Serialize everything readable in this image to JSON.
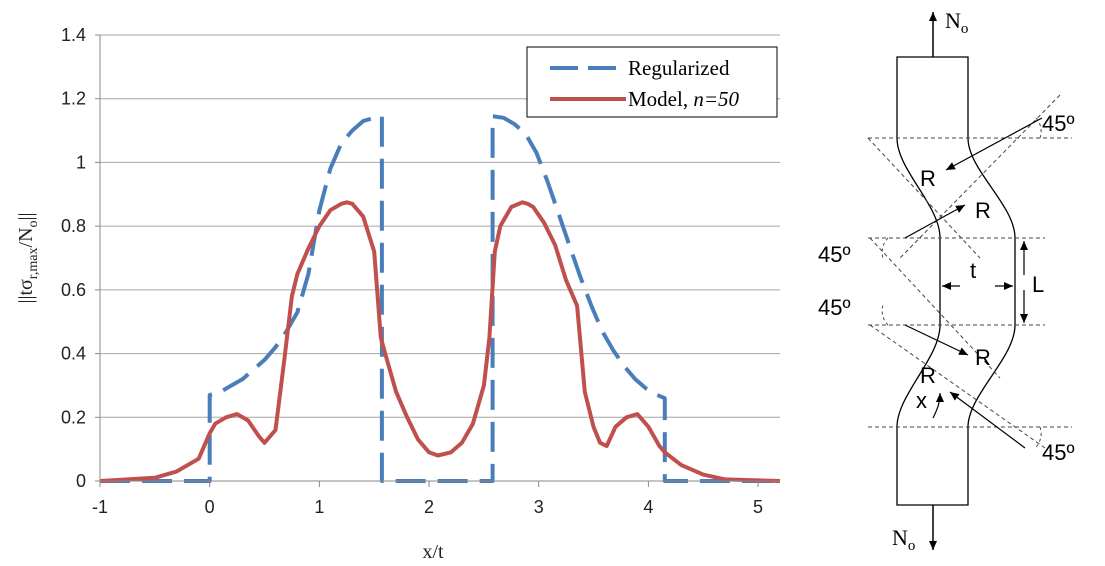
{
  "chart_data": {
    "type": "line",
    "title": "",
    "xlabel": "x/t",
    "ylabel": "||tσr,max/No||",
    "ylabel_parts": {
      "pre": "||tσ",
      "sub": "r,max",
      "mid": "/N",
      "sub2": "o",
      "post": "||"
    },
    "xlim": [
      -1,
      5.2
    ],
    "ylim": [
      0,
      1.4
    ],
    "xticks": [
      "-1",
      "0",
      "1",
      "2",
      "3",
      "4",
      "5"
    ],
    "yticks": [
      "0",
      "0.2",
      "0.4",
      "0.6",
      "0.8",
      "1",
      "1.2",
      "1.4"
    ],
    "grid": "horizontal",
    "legend_position": "top-right",
    "series": [
      {
        "name": "Regularized",
        "name_display": {
          "text": "Regularized"
        },
        "color": "#4a7ebb",
        "style": "dashed",
        "x": [
          -1,
          0,
          0,
          0.1,
          0.2,
          0.3,
          0.4,
          0.5,
          0.6,
          0.7,
          0.8,
          0.9,
          1.0,
          1.1,
          1.2,
          1.3,
          1.4,
          1.5,
          1.57,
          1.57,
          2.58,
          2.58,
          2.68,
          2.78,
          2.88,
          2.98,
          3.08,
          3.18,
          3.28,
          3.38,
          3.48,
          3.58,
          3.68,
          3.78,
          3.88,
          3.98,
          4.08,
          4.15,
          4.15,
          5.2
        ],
        "y": [
          0,
          0,
          0.27,
          0.28,
          0.3,
          0.32,
          0.35,
          0.38,
          0.42,
          0.47,
          0.53,
          0.65,
          0.85,
          0.98,
          1.06,
          1.1,
          1.13,
          1.14,
          1.145,
          0,
          0,
          1.145,
          1.14,
          1.12,
          1.09,
          1.03,
          0.94,
          0.84,
          0.74,
          0.64,
          0.55,
          0.47,
          0.41,
          0.36,
          0.32,
          0.29,
          0.27,
          0.26,
          0,
          0
        ]
      },
      {
        "name": "Model, n=50",
        "name_display": {
          "text": "Model, ",
          "italic": "n=50"
        },
        "color": "#c0504d",
        "style": "solid",
        "x": [
          -1,
          -0.5,
          -0.3,
          -0.1,
          0.0,
          0.05,
          0.15,
          0.25,
          0.35,
          0.45,
          0.5,
          0.6,
          0.68,
          0.75,
          0.8,
          0.9,
          1.0,
          1.1,
          1.2,
          1.25,
          1.3,
          1.4,
          1.5,
          1.56,
          1.6,
          1.7,
          1.8,
          1.9,
          2.0,
          2.08,
          2.2,
          2.3,
          2.4,
          2.5,
          2.55,
          2.6,
          2.65,
          2.75,
          2.85,
          2.9,
          2.95,
          3.05,
          3.15,
          3.25,
          3.35,
          3.42,
          3.5,
          3.56,
          3.62,
          3.7,
          3.8,
          3.9,
          4.0,
          4.1,
          4.15,
          4.3,
          4.5,
          4.7,
          5.2
        ],
        "y": [
          0,
          0.01,
          0.03,
          0.07,
          0.15,
          0.18,
          0.2,
          0.21,
          0.19,
          0.14,
          0.12,
          0.16,
          0.38,
          0.58,
          0.65,
          0.73,
          0.8,
          0.85,
          0.87,
          0.875,
          0.87,
          0.83,
          0.72,
          0.45,
          0.4,
          0.28,
          0.2,
          0.13,
          0.09,
          0.08,
          0.09,
          0.12,
          0.18,
          0.3,
          0.45,
          0.72,
          0.8,
          0.86,
          0.875,
          0.87,
          0.86,
          0.81,
          0.74,
          0.63,
          0.55,
          0.28,
          0.17,
          0.12,
          0.11,
          0.17,
          0.2,
          0.21,
          0.17,
          0.11,
          0.09,
          0.05,
          0.02,
          0.005,
          0
        ]
      }
    ]
  },
  "diagram": {
    "force_top": {
      "main": "N",
      "sub": "o"
    },
    "force_bottom": {
      "main": "N",
      "sub": "o"
    },
    "angle_labels": [
      "45º",
      "45º",
      "45º",
      "45º"
    ],
    "radius_labels": [
      "R",
      "R",
      "R",
      "R"
    ],
    "thickness_label": "t",
    "length_label": "L",
    "x_label": "x"
  }
}
